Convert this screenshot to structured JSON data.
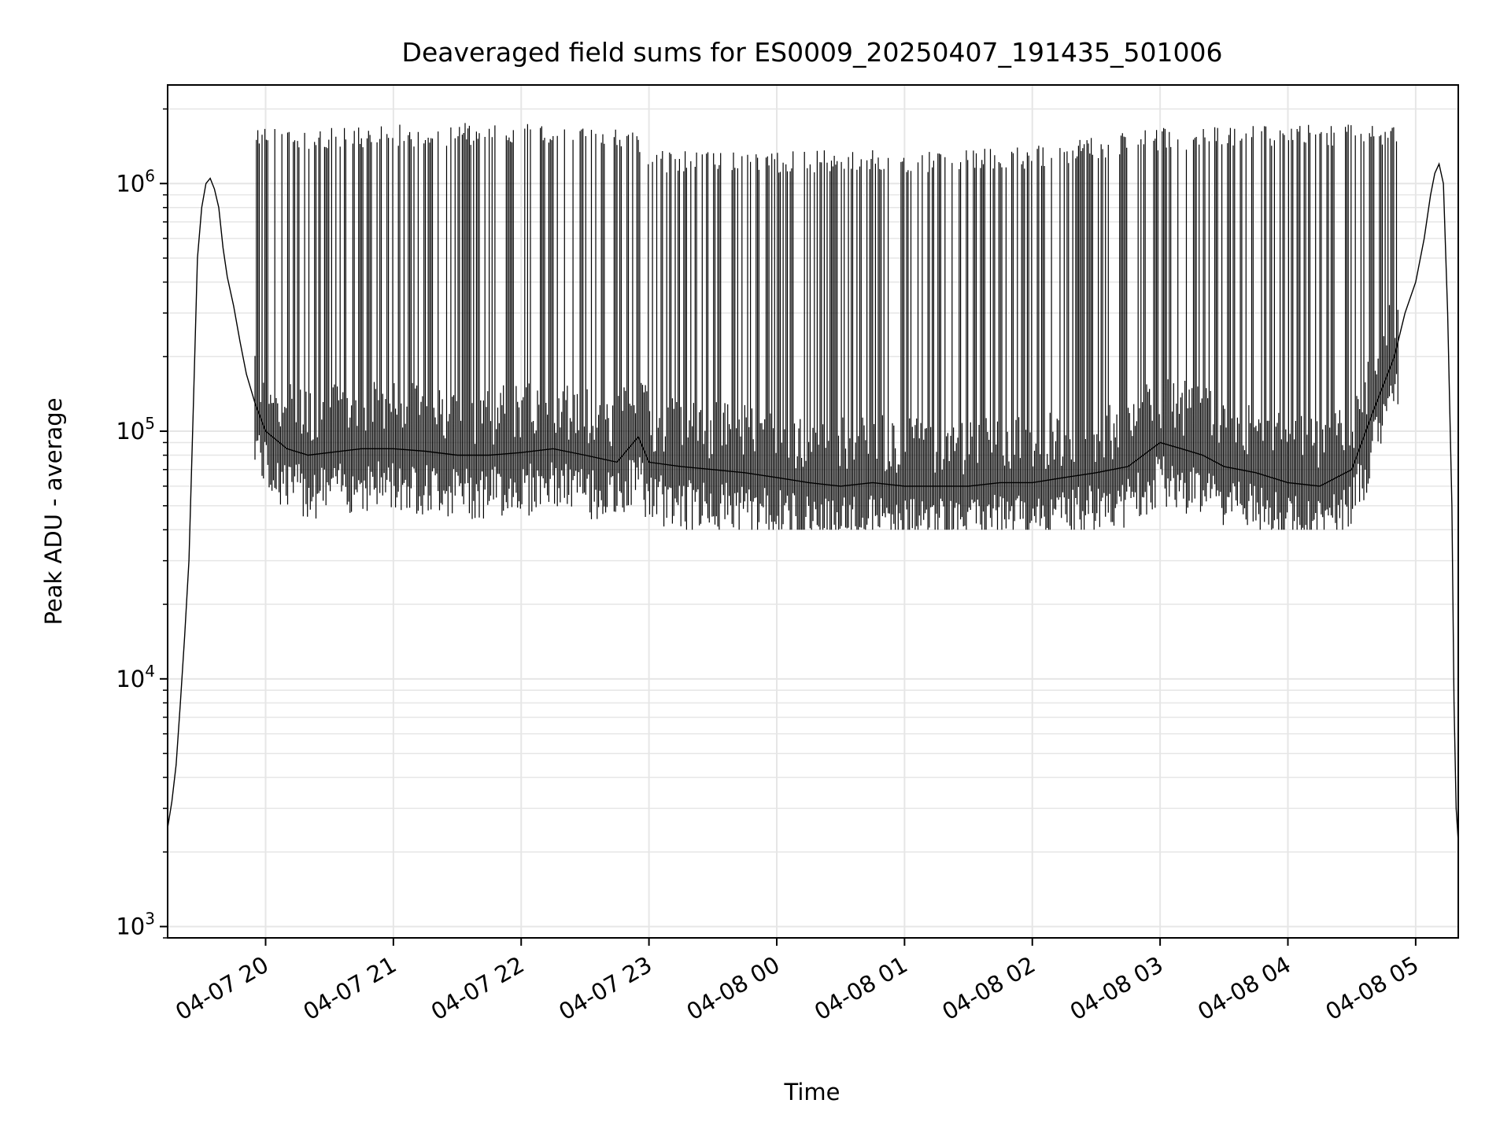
{
  "chart_data": {
    "type": "line",
    "title": "Deaveraged field sums for ES0009_20250407_191435_501006",
    "xlabel": "Time",
    "ylabel": "Peak ADU - average",
    "yscale": "log",
    "ylim": [
      900,
      2500000
    ],
    "xlim": [
      "2025-04-07 19:14",
      "2025-04-08 05:20"
    ],
    "x_ticks": [
      "2025-04-07 20:00",
      "2025-04-07 21:00",
      "2025-04-07 22:00",
      "2025-04-07 23:00",
      "2025-04-08 00:00",
      "2025-04-08 01:00",
      "2025-04-08 02:00",
      "2025-04-08 03:00",
      "2025-04-08 04:00",
      "2025-04-08 05:00"
    ],
    "x_tick_labels": [
      "04-07 20",
      "04-07 21",
      "04-07 22",
      "04-07 23",
      "04-08 00",
      "04-08 01",
      "04-08 02",
      "04-08 03",
      "04-08 04",
      "04-08 05"
    ],
    "y_ticks": [
      1000,
      10000,
      100000,
      1000000
    ],
    "y_tick_labels": [
      {
        "base": "10",
        "exp": "3"
      },
      {
        "base": "10",
        "exp": "4"
      },
      {
        "base": "10",
        "exp": "5"
      },
      {
        "base": "10",
        "exp": "6"
      }
    ],
    "grid": true,
    "line_color": "#000000",
    "grid_color": "#e6e6e6",
    "series": [
      {
        "x": [
          "2025-04-07 19:14",
          "2025-04-07 19:16",
          "2025-04-07 19:18",
          "2025-04-07 19:20",
          "2025-04-07 19:22",
          "2025-04-07 19:24",
          "2025-04-07 19:26",
          "2025-04-07 19:28",
          "2025-04-07 19:30",
          "2025-04-07 19:32",
          "2025-04-07 19:34",
          "2025-04-07 19:36",
          "2025-04-07 19:38",
          "2025-04-07 19:40",
          "2025-04-07 19:42",
          "2025-04-07 19:45",
          "2025-04-07 19:48",
          "2025-04-07 19:51",
          "2025-04-07 19:55",
          "2025-04-07 20:00",
          "2025-04-07 20:10",
          "2025-04-07 20:20",
          "2025-04-07 20:30",
          "2025-04-07 20:45",
          "2025-04-07 21:00",
          "2025-04-07 21:15",
          "2025-04-07 21:30",
          "2025-04-07 21:45",
          "2025-04-07 22:00",
          "2025-04-07 22:15",
          "2025-04-07 22:30",
          "2025-04-07 22:45",
          "2025-04-07 22:55",
          "2025-04-07 23:00",
          "2025-04-07 23:15",
          "2025-04-07 23:30",
          "2025-04-07 23:45",
          "2025-04-08 00:00",
          "2025-04-08 00:15",
          "2025-04-08 00:30",
          "2025-04-08 00:45",
          "2025-04-08 01:00",
          "2025-04-08 01:15",
          "2025-04-08 01:30",
          "2025-04-08 01:45",
          "2025-04-08 02:00",
          "2025-04-08 02:15",
          "2025-04-08 02:30",
          "2025-04-08 02:45",
          "2025-04-08 03:00",
          "2025-04-08 03:10",
          "2025-04-08 03:20",
          "2025-04-08 03:30",
          "2025-04-08 03:45",
          "2025-04-08 04:00",
          "2025-04-08 04:15",
          "2025-04-08 04:30",
          "2025-04-08 04:40",
          "2025-04-08 04:50",
          "2025-04-08 04:55",
          "2025-04-08 05:00",
          "2025-04-08 05:04",
          "2025-04-08 05:07",
          "2025-04-08 05:09",
          "2025-04-08 05:11",
          "2025-04-08 05:13",
          "2025-04-08 05:15",
          "2025-04-08 05:17",
          "2025-04-08 05:18",
          "2025-04-08 05:19",
          "2025-04-08 05:20"
        ],
        "y": [
          2500,
          3200,
          4500,
          8000,
          15000,
          30000,
          120000,
          500000,
          800000,
          1000000,
          1050000,
          950000,
          800000,
          550000,
          420000,
          320000,
          230000,
          170000,
          130000,
          100000,
          85000,
          80000,
          82000,
          85000,
          85000,
          83000,
          80000,
          80000,
          82000,
          85000,
          80000,
          75000,
          95000,
          75000,
          72000,
          70000,
          68000,
          65000,
          62000,
          60000,
          62000,
          60000,
          60000,
          60000,
          62000,
          62000,
          65000,
          68000,
          72000,
          90000,
          85000,
          80000,
          72000,
          68000,
          62000,
          60000,
          70000,
          120000,
          200000,
          300000,
          400000,
          600000,
          900000,
          1100000,
          1200000,
          1000000,
          300000,
          50000,
          8000,
          3000,
          2200
        ]
      }
    ],
    "spikes": {
      "x_range": [
        "2025-04-07 19:55",
        "2025-04-08 04:52"
      ],
      "peak_by_hour": [
        {
          "x": "2025-04-07 20:00",
          "y": 1600000
        },
        {
          "x": "2025-04-07 22:00",
          "y": 1700000
        },
        {
          "x": "2025-04-07 22:50",
          "y": 1600000
        },
        {
          "x": "2025-04-07 23:05",
          "y": 1300000
        },
        {
          "x": "2025-04-08 00:00",
          "y": 1300000
        },
        {
          "x": "2025-04-08 01:00",
          "y": 1300000
        },
        {
          "x": "2025-04-08 02:00",
          "y": 1350000
        },
        {
          "x": "2025-04-08 03:00",
          "y": 1600000
        },
        {
          "x": "2025-04-08 04:00",
          "y": 1650000
        },
        {
          "x": "2025-04-08 05:00",
          "y": 1700000
        }
      ],
      "min_dips_y": 40000
    }
  }
}
